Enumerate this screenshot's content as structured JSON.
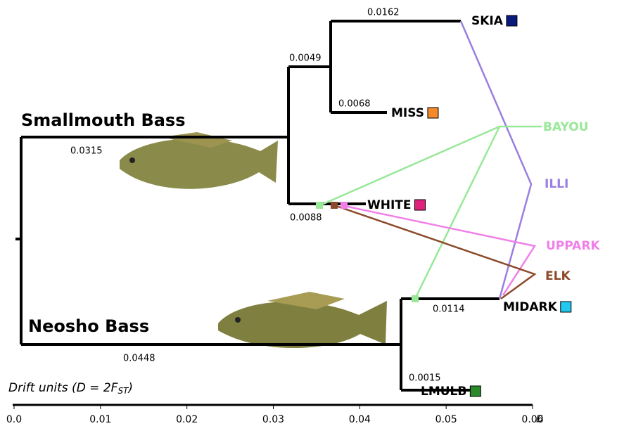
{
  "groups": [
    "Smallmouth Bass",
    "Neosho Bass"
  ],
  "populations": [
    "SKIA",
    "MISS",
    "WHITE",
    "BAYOU",
    "ILLI",
    "UPPARK",
    "ELK",
    "MIDARK",
    "LMULB"
  ],
  "branch_labels": [
    "0.0162",
    "0.0049",
    "0.0068",
    "0.0315",
    "0.0088",
    "0.0114",
    "0.0448",
    "0.0015"
  ],
  "axis": {
    "title_main": "Drift units (D = 2F",
    "title_sub": "ST",
    "title_end": ")",
    "unit": "D",
    "ticks": [
      "0.0",
      "0.01",
      "0.02",
      "0.03",
      "0.04",
      "0.05",
      "0.06"
    ]
  }
}
